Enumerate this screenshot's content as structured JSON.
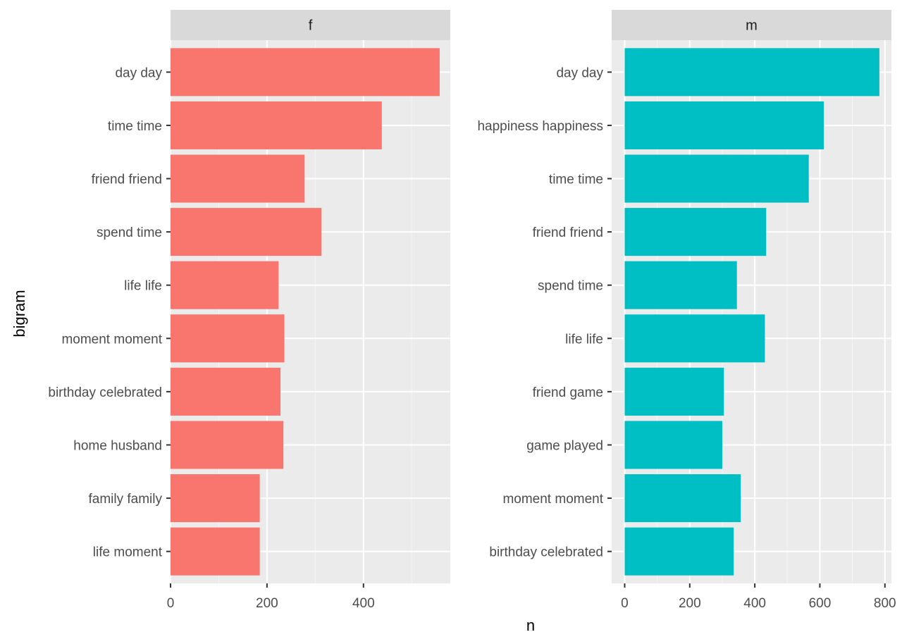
{
  "chart_data": {
    "type": "bar",
    "orientation": "horizontal",
    "xlabel": "n",
    "ylabel": "bigram",
    "grid": true,
    "legend": "none",
    "panels": [
      {
        "name": "f",
        "color": "#F8766D",
        "xlim": [
          0,
          580
        ],
        "ticks": [
          0,
          200,
          400
        ],
        "categories": [
          "day day",
          "time time",
          "friend friend",
          "spend time",
          "life life",
          "moment moment",
          "birthday celebrated",
          "home husband",
          "family family",
          "life moment"
        ],
        "values": [
          558,
          438,
          278,
          313,
          224,
          236,
          228,
          234,
          185,
          185
        ]
      },
      {
        "name": "m",
        "color": "#00BFC4",
        "xlim": [
          -40,
          820
        ],
        "ticks": [
          0,
          200,
          400,
          600,
          800
        ],
        "categories": [
          "day day",
          "happiness happiness",
          "time time",
          "friend friend",
          "spend time",
          "life life",
          "friend game",
          "game played",
          "moment moment",
          "birthday celebrated"
        ],
        "values": [
          783,
          612,
          566,
          435,
          345,
          431,
          305,
          300,
          357,
          335
        ]
      }
    ]
  }
}
